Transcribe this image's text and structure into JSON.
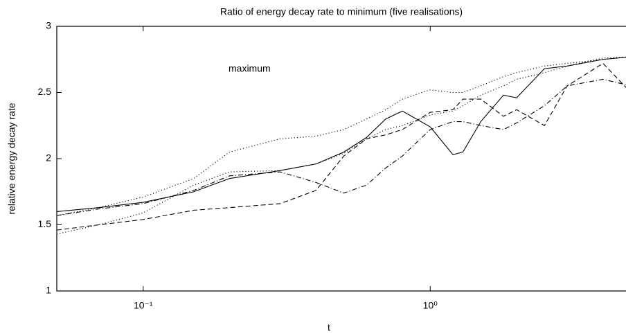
{
  "chart_data": {
    "type": "line",
    "title": "Ratio of energy decay rate to minimum (five realisations)",
    "x_label": "t",
    "y_label": "relative energy decay rate",
    "annotation": "maximum",
    "x_scale": "log",
    "xlim": [
      0.05,
      5
    ],
    "ylim": [
      1,
      3
    ],
    "xticks": [
      {
        "value": 0.1,
        "label": "10⁻¹"
      },
      {
        "value": 1,
        "label": "10⁰"
      }
    ],
    "yticks": [
      1,
      1.5,
      2,
      2.5,
      3
    ],
    "x": [
      0.05,
      0.07,
      0.1,
      0.15,
      0.2,
      0.3,
      0.4,
      0.5,
      0.6,
      0.7,
      0.8,
      1.0,
      1.2,
      1.3,
      1.5,
      1.8,
      2,
      2.5,
      3,
      4,
      5
    ],
    "series": [
      {
        "color": "#000000",
        "dash": "solid",
        "values": [
          1.6,
          1.63,
          1.67,
          1.75,
          1.85,
          1.91,
          1.96,
          2.05,
          2.16,
          2.3,
          2.36,
          2.24,
          2.03,
          2.05,
          2.28,
          2.48,
          2.46,
          2.68,
          2.7,
          2.75,
          2.77
        ]
      },
      {
        "color": "#000000",
        "dash": "dashed",
        "values": [
          1.46,
          1.5,
          1.54,
          1.61,
          1.63,
          1.66,
          1.76,
          2.02,
          2.15,
          2.18,
          2.22,
          2.35,
          2.37,
          2.45,
          2.45,
          2.32,
          2.37,
          2.25,
          2.55,
          2.72,
          2.5
        ]
      },
      {
        "color": "#000000",
        "dash": "dashdot",
        "values": [
          1.57,
          1.62,
          1.66,
          1.76,
          1.87,
          1.9,
          1.82,
          1.74,
          1.8,
          1.93,
          2.02,
          2.22,
          2.28,
          2.28,
          2.25,
          2.22,
          2.27,
          2.4,
          2.55,
          2.6,
          2.55
        ]
      },
      {
        "color": "#000000",
        "dash": "dotted",
        "values": [
          1.57,
          1.63,
          1.71,
          1.85,
          2.05,
          2.15,
          2.17,
          2.22,
          2.3,
          2.37,
          2.45,
          2.52,
          2.5,
          2.5,
          2.55,
          2.62,
          2.65,
          2.7,
          2.72,
          2.75,
          2.77
        ]
      },
      {
        "color": "#000000",
        "dash": "dotted",
        "values": [
          1.43,
          1.5,
          1.59,
          1.8,
          1.9,
          1.91,
          1.96,
          2.04,
          2.15,
          2.22,
          2.25,
          2.33,
          2.36,
          2.4,
          2.48,
          2.55,
          2.6,
          2.65,
          2.7,
          2.76,
          2.77
        ]
      }
    ]
  }
}
